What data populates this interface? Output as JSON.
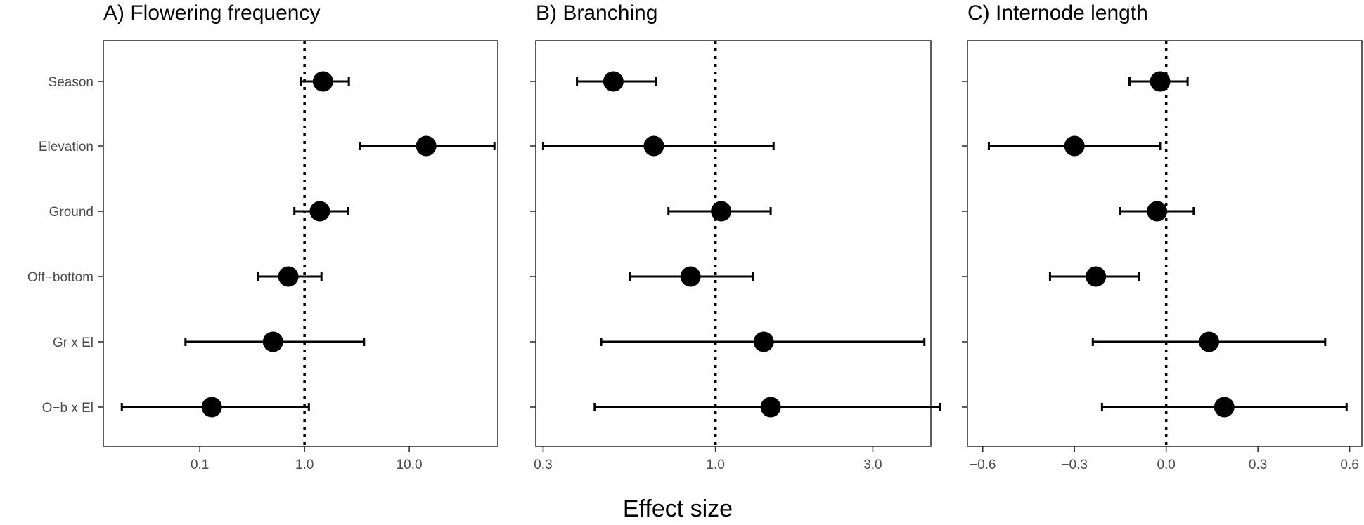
{
  "xlabel": "Effect size",
  "categories": [
    "Season",
    "Elevation",
    "Ground",
    "Off−bottom",
    "Gr x El",
    "O−b x El"
  ],
  "chart_data": [
    {
      "type": "scatter",
      "title": "A) Flowering frequency",
      "xscale": "log",
      "xlim": [
        0.012,
        70
      ],
      "xticks": [
        0.1,
        1.0,
        10.0
      ],
      "xtick_labels": [
        "0.1",
        "1.0",
        "10.0"
      ],
      "reference_line": 1.0,
      "points": [
        {
          "category": "Season",
          "estimate": 1.5,
          "lower": 0.92,
          "upper": 2.65
        },
        {
          "category": "Elevation",
          "estimate": 14.5,
          "lower": 3.4,
          "upper": 65
        },
        {
          "category": "Ground",
          "estimate": 1.4,
          "lower": 0.8,
          "upper": 2.6
        },
        {
          "category": "Off−bottom",
          "estimate": 0.7,
          "lower": 0.36,
          "upper": 1.45
        },
        {
          "category": "Gr x El",
          "estimate": 0.5,
          "lower": 0.073,
          "upper": 3.7
        },
        {
          "category": "O−b x El",
          "estimate": 0.13,
          "lower": 0.018,
          "upper": 1.1
        }
      ]
    },
    {
      "type": "scatter",
      "title": "B) Branching",
      "xscale": "log",
      "xlim": [
        0.285,
        4.5
      ],
      "xticks": [
        0.3,
        1.0,
        3.0
      ],
      "xtick_labels": [
        "0.3",
        "1.0",
        "3.0"
      ],
      "reference_line": 1.0,
      "points": [
        {
          "category": "Season",
          "estimate": 0.49,
          "lower": 0.38,
          "upper": 0.66
        },
        {
          "category": "Elevation",
          "estimate": 0.65,
          "lower": 0.3,
          "upper": 1.5
        },
        {
          "category": "Ground",
          "estimate": 1.04,
          "lower": 0.72,
          "upper": 1.47
        },
        {
          "category": "Off−bottom",
          "estimate": 0.84,
          "lower": 0.55,
          "upper": 1.3
        },
        {
          "category": "Gr x El",
          "estimate": 1.4,
          "lower": 0.45,
          "upper": 4.3
        },
        {
          "category": "O−b x El",
          "estimate": 1.47,
          "lower": 0.43,
          "upper": 4.8
        }
      ]
    },
    {
      "type": "scatter",
      "title": "C) Internode length",
      "xscale": "linear",
      "xlim": [
        -0.65,
        0.64
      ],
      "xticks": [
        -0.6,
        -0.3,
        0.0,
        0.3,
        0.6
      ],
      "xtick_labels": [
        "−0.6",
        "−0.3",
        "0.0",
        "0.3",
        "0.6"
      ],
      "reference_line": 0.0,
      "points": [
        {
          "category": "Season",
          "estimate": -0.02,
          "lower": -0.12,
          "upper": 0.07
        },
        {
          "category": "Elevation",
          "estimate": -0.3,
          "lower": -0.58,
          "upper": -0.02
        },
        {
          "category": "Ground",
          "estimate": -0.03,
          "lower": -0.15,
          "upper": 0.09
        },
        {
          "category": "Off−bottom",
          "estimate": -0.23,
          "lower": -0.38,
          "upper": -0.09
        },
        {
          "category": "Gr x El",
          "estimate": 0.14,
          "lower": -0.24,
          "upper": 0.52
        },
        {
          "category": "O−b x El",
          "estimate": 0.19,
          "lower": -0.21,
          "upper": 0.59
        }
      ]
    }
  ]
}
